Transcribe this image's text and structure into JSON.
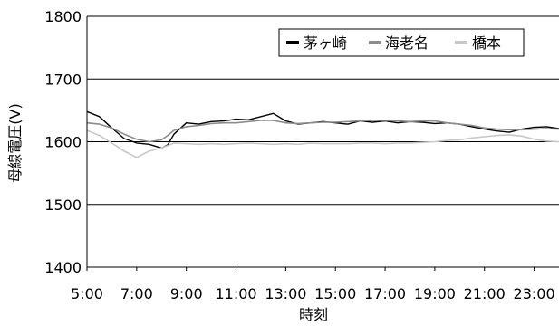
{
  "chart_data": {
    "type": "line",
    "title": "",
    "xlabel": "時刻",
    "ylabel": "母線電圧(V)",
    "ylim": [
      1400,
      1800
    ],
    "yticks": [
      1400,
      1500,
      1600,
      1700,
      1800
    ],
    "xlim": [
      "5:00",
      "24:00"
    ],
    "xtick_labels": [
      "5:00",
      "7:00",
      "9:00",
      "11:00",
      "13:00",
      "15:00",
      "17:00",
      "19:00",
      "21:00",
      "23:00"
    ],
    "grid": "horizontal",
    "legend_position": "top-right",
    "series": [
      {
        "name": "茅ヶ崎",
        "color": "#000000",
        "x": [
          "5:00",
          "5:30",
          "6:00",
          "6:30",
          "7:00",
          "7:30",
          "8:00",
          "8:15",
          "8:30",
          "9:00",
          "9:30",
          "10:00",
          "10:30",
          "11:00",
          "11:30",
          "12:00",
          "12:30",
          "13:00",
          "13:30",
          "14:00",
          "14:30",
          "15:00",
          "15:30",
          "16:00",
          "16:30",
          "17:00",
          "17:30",
          "18:00",
          "18:30",
          "19:00",
          "19:30",
          "20:00",
          "20:30",
          "21:00",
          "21:30",
          "22:00",
          "22:30",
          "23:00",
          "23:30",
          "24:00"
        ],
        "values": [
          1648,
          1640,
          1622,
          1605,
          1598,
          1596,
          1590,
          1595,
          1612,
          1630,
          1628,
          1632,
          1633,
          1636,
          1635,
          1640,
          1645,
          1633,
          1628,
          1630,
          1632,
          1630,
          1628,
          1633,
          1631,
          1633,
          1630,
          1632,
          1631,
          1629,
          1630,
          1628,
          1624,
          1620,
          1617,
          1615,
          1620,
          1623,
          1624,
          1621
        ]
      },
      {
        "name": "海老名",
        "color": "#8c8c8c",
        "x": [
          "5:00",
          "5:30",
          "6:00",
          "6:30",
          "7:00",
          "7:30",
          "8:00",
          "8:15",
          "8:30",
          "9:00",
          "9:30",
          "10:00",
          "10:30",
          "11:00",
          "11:30",
          "12:00",
          "12:30",
          "13:00",
          "13:30",
          "14:00",
          "14:30",
          "15:00",
          "15:30",
          "16:00",
          "16:30",
          "17:00",
          "17:30",
          "18:00",
          "18:30",
          "19:00",
          "19:30",
          "20:00",
          "20:30",
          "21:00",
          "21:30",
          "22:00",
          "22:30",
          "23:00",
          "23:30",
          "24:00"
        ],
        "values": [
          1630,
          1628,
          1622,
          1612,
          1604,
          1600,
          1603,
          1610,
          1618,
          1624,
          1626,
          1629,
          1630,
          1630,
          1632,
          1634,
          1634,
          1630,
          1629,
          1630,
          1631,
          1631,
          1632,
          1633,
          1634,
          1634,
          1633,
          1632,
          1633,
          1633,
          1630,
          1628,
          1626,
          1622,
          1620,
          1619,
          1619,
          1620,
          1621,
          1620
        ]
      },
      {
        "name": "橋本",
        "color": "#c8c8c8",
        "x": [
          "5:00",
          "5:30",
          "6:00",
          "6:30",
          "7:00",
          "7:30",
          "8:00",
          "8:15",
          "8:30",
          "9:00",
          "9:30",
          "10:00",
          "10:30",
          "11:00",
          "11:30",
          "12:00",
          "12:30",
          "13:00",
          "13:30",
          "14:00",
          "14:30",
          "15:00",
          "15:30",
          "16:00",
          "16:30",
          "17:00",
          "17:30",
          "18:00",
          "18:30",
          "19:00",
          "19:30",
          "20:00",
          "20:30",
          "21:00",
          "21:30",
          "22:00",
          "22:30",
          "23:00",
          "23:30",
          "24:00"
        ],
        "values": [
          1618,
          1610,
          1598,
          1585,
          1575,
          1585,
          1590,
          1594,
          1598,
          1597,
          1596,
          1597,
          1596,
          1597,
          1598,
          1597,
          1596,
          1597,
          1596,
          1598,
          1597,
          1597,
          1597,
          1598,
          1598,
          1597,
          1598,
          1598,
          1599,
          1600,
          1602,
          1603,
          1606,
          1608,
          1610,
          1611,
          1609,
          1604,
          1601,
          1600
        ]
      }
    ]
  }
}
